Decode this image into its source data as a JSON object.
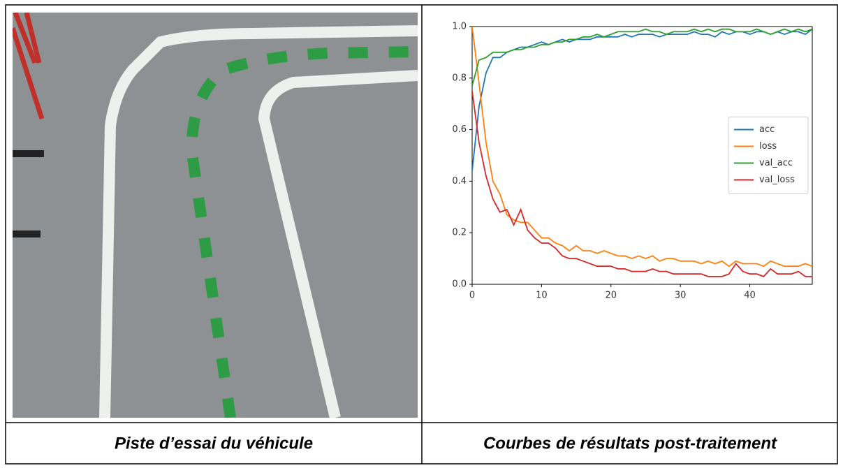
{
  "table": {
    "captions": [
      "Piste d’essai du véhicule",
      "Courbes de résultats post-traitement"
    ]
  },
  "chart_data": {
    "type": "line",
    "x": [
      0,
      1,
      2,
      3,
      4,
      5,
      6,
      7,
      8,
      9,
      10,
      11,
      12,
      13,
      14,
      15,
      16,
      17,
      18,
      19,
      20,
      21,
      22,
      23,
      24,
      25,
      26,
      27,
      28,
      29,
      30,
      31,
      32,
      33,
      34,
      35,
      36,
      37,
      38,
      39,
      40,
      41,
      42,
      43,
      44,
      45,
      46,
      47,
      48,
      49
    ],
    "series": [
      {
        "name": "acc",
        "color": "#1f77b4",
        "values": [
          0.44,
          0.69,
          0.82,
          0.88,
          0.88,
          0.9,
          0.91,
          0.92,
          0.92,
          0.93,
          0.94,
          0.93,
          0.94,
          0.95,
          0.94,
          0.95,
          0.95,
          0.95,
          0.96,
          0.96,
          0.96,
          0.96,
          0.97,
          0.96,
          0.97,
          0.97,
          0.97,
          0.96,
          0.97,
          0.97,
          0.97,
          0.97,
          0.98,
          0.97,
          0.97,
          0.96,
          0.98,
          0.97,
          0.98,
          0.98,
          0.97,
          0.98,
          0.98,
          0.97,
          0.98,
          0.97,
          0.98,
          0.98,
          0.97,
          0.99
        ]
      },
      {
        "name": "loss",
        "color": "#ff7f0e",
        "values": [
          1.0,
          0.78,
          0.55,
          0.4,
          0.35,
          0.27,
          0.25,
          0.24,
          0.24,
          0.21,
          0.18,
          0.18,
          0.16,
          0.15,
          0.13,
          0.15,
          0.13,
          0.13,
          0.12,
          0.13,
          0.12,
          0.11,
          0.11,
          0.1,
          0.11,
          0.1,
          0.11,
          0.09,
          0.1,
          0.1,
          0.09,
          0.09,
          0.09,
          0.08,
          0.09,
          0.08,
          0.09,
          0.07,
          0.09,
          0.08,
          0.08,
          0.08,
          0.07,
          0.09,
          0.08,
          0.07,
          0.07,
          0.07,
          0.08,
          0.07
        ]
      },
      {
        "name": "val_acc",
        "color": "#2ca02c",
        "values": [
          0.77,
          0.87,
          0.88,
          0.9,
          0.9,
          0.9,
          0.91,
          0.91,
          0.92,
          0.92,
          0.93,
          0.93,
          0.94,
          0.94,
          0.95,
          0.95,
          0.96,
          0.96,
          0.97,
          0.96,
          0.97,
          0.98,
          0.98,
          0.98,
          0.98,
          0.99,
          0.98,
          0.98,
          0.97,
          0.98,
          0.98,
          0.98,
          0.99,
          0.98,
          0.99,
          0.98,
          0.99,
          0.99,
          0.98,
          0.98,
          0.98,
          0.99,
          0.98,
          0.97,
          0.98,
          0.99,
          0.98,
          0.99,
          0.98,
          0.99
        ]
      },
      {
        "name": "val_loss",
        "color": "#d62728",
        "values": [
          0.75,
          0.55,
          0.42,
          0.33,
          0.28,
          0.29,
          0.23,
          0.29,
          0.21,
          0.18,
          0.16,
          0.16,
          0.14,
          0.11,
          0.1,
          0.1,
          0.09,
          0.08,
          0.07,
          0.07,
          0.07,
          0.06,
          0.06,
          0.05,
          0.05,
          0.05,
          0.06,
          0.05,
          0.05,
          0.04,
          0.04,
          0.04,
          0.04,
          0.04,
          0.03,
          0.03,
          0.03,
          0.04,
          0.08,
          0.05,
          0.04,
          0.04,
          0.03,
          0.06,
          0.04,
          0.04,
          0.04,
          0.05,
          0.03,
          0.03
        ]
      }
    ],
    "xlim": [
      0,
      49
    ],
    "xticks": [
      0,
      10,
      20,
      30,
      40
    ],
    "ylim": [
      0,
      1
    ],
    "yticks": [
      {
        "value": 0,
        "label": "0.0"
      },
      0.2,
      0.4,
      0.6,
      0.8,
      {
        "value": 1,
        "label": "1.0"
      }
    ],
    "legend": "center right"
  }
}
